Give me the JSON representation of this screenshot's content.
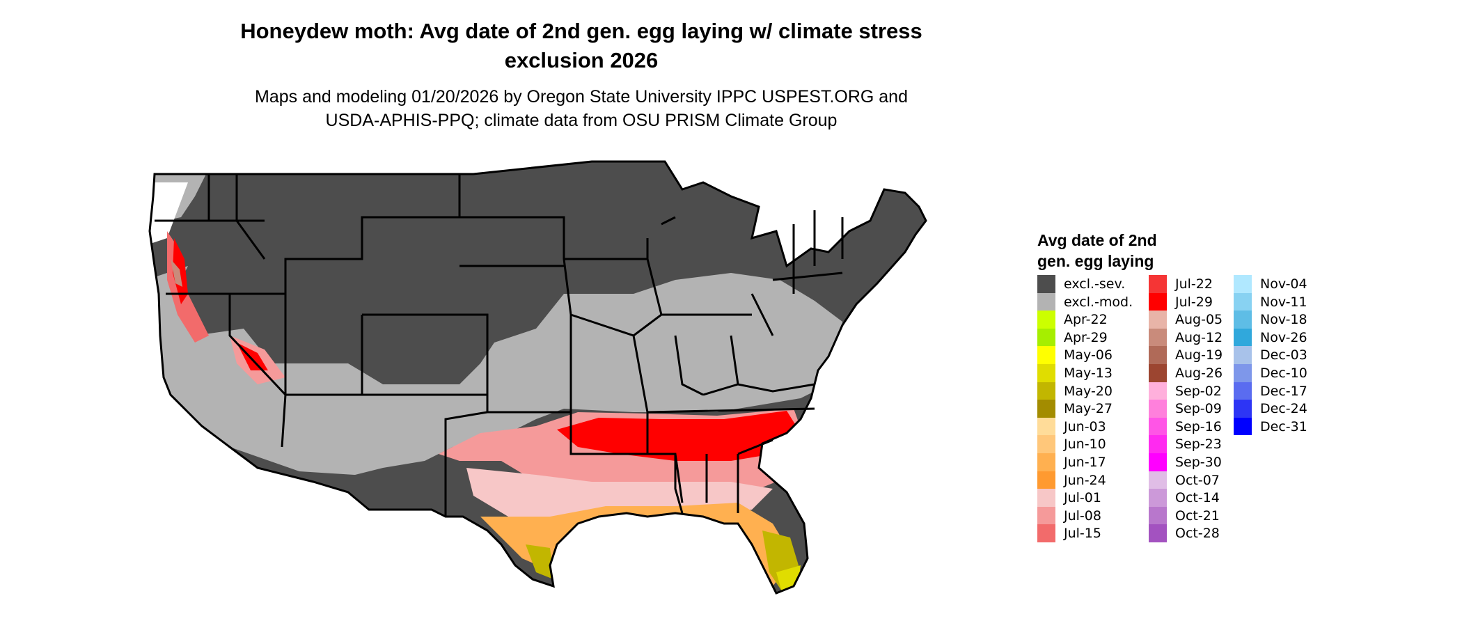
{
  "title_line1": "Honeydew moth: Avg date of 2nd gen. egg laying w/ climate stress",
  "title_line2": "exclusion 2026",
  "subtitle_line1": "Maps and modeling 01/20/2026 by Oregon State University IPPC USPEST.ORG and",
  "subtitle_line2": "USDA-APHIS-PPQ; climate data from OSU PRISM Climate Group",
  "legend": {
    "title_line1": "Avg date of 2nd",
    "title_line2": "gen. egg laying",
    "items": [
      {
        "label": "excl.-sev.",
        "color": "#4d4d4d"
      },
      {
        "label": "excl.-mod.",
        "color": "#b3b3b3"
      },
      {
        "label": "Apr-22",
        "color": "#ccff00"
      },
      {
        "label": "Apr-29",
        "color": "#a6ee00"
      },
      {
        "label": "May-06",
        "color": "#ffff00"
      },
      {
        "label": "May-13",
        "color": "#e0dd00"
      },
      {
        "label": "May-20",
        "color": "#c2b600"
      },
      {
        "label": "May-27",
        "color": "#a38c00"
      },
      {
        "label": "Jun-03",
        "color": "#ffdc99"
      },
      {
        "label": "Jun-10",
        "color": "#ffc77a"
      },
      {
        "label": "Jun-17",
        "color": "#ffb050"
      },
      {
        "label": "Jun-24",
        "color": "#ff9a30"
      },
      {
        "label": "Jul-01",
        "color": "#f7c7c7"
      },
      {
        "label": "Jul-08",
        "color": "#f59a9a"
      },
      {
        "label": "Jul-15",
        "color": "#f26b6b"
      },
      {
        "label": "Jul-22",
        "color": "#f53535"
      },
      {
        "label": "Jul-29",
        "color": "#ff0000"
      },
      {
        "label": "Aug-05",
        "color": "#e8b4a8"
      },
      {
        "label": "Aug-12",
        "color": "#c98b7b"
      },
      {
        "label": "Aug-19",
        "color": "#b06a58"
      },
      {
        "label": "Aug-26",
        "color": "#9c4530"
      },
      {
        "label": "Sep-02",
        "color": "#ffb0dc"
      },
      {
        "label": "Sep-09",
        "color": "#ff80dc"
      },
      {
        "label": "Sep-16",
        "color": "#ff55e6"
      },
      {
        "label": "Sep-23",
        "color": "#ff2af0"
      },
      {
        "label": "Sep-30",
        "color": "#ff00ff"
      },
      {
        "label": "Oct-07",
        "color": "#e0bde6"
      },
      {
        "label": "Oct-14",
        "color": "#cc99d9"
      },
      {
        "label": "Oct-21",
        "color": "#b877cc"
      },
      {
        "label": "Oct-28",
        "color": "#a352c0"
      },
      {
        "label": "Nov-04",
        "color": "#b0e8ff"
      },
      {
        "label": "Nov-11",
        "color": "#88d2f2"
      },
      {
        "label": "Nov-18",
        "color": "#5ebde6"
      },
      {
        "label": "Nov-26",
        "color": "#30a8dc"
      },
      {
        "label": "Dec-03",
        "color": "#a8c2ea"
      },
      {
        "label": "Dec-10",
        "color": "#7e97ea"
      },
      {
        "label": "Dec-17",
        "color": "#5a6cf0"
      },
      {
        "label": "Dec-24",
        "color": "#2d35f5"
      },
      {
        "label": "Dec-31",
        "color": "#0000ff"
      }
    ]
  }
}
